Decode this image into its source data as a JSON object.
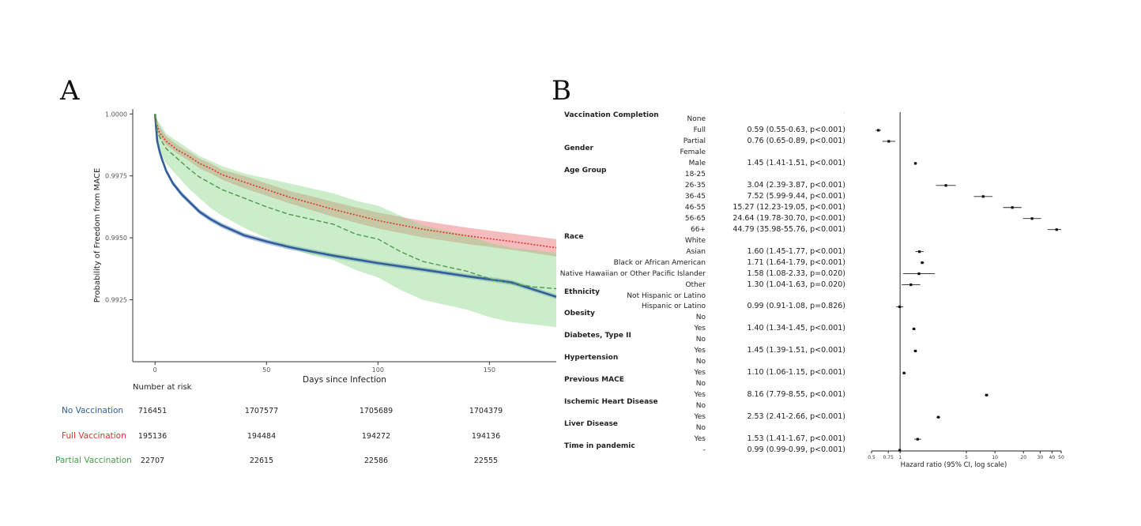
{
  "panels": {
    "a_label": "A",
    "b_label": "B"
  },
  "chart_data": [
    {
      "type": "line",
      "ylabel": "Probability of Freedom from MACE",
      "xlabel": "Days since Infection",
      "xlim": [
        -10,
        180
      ],
      "ylim": [
        0.99,
        1.0002
      ],
      "x_ticks": [
        "0",
        "50",
        "100",
        "150"
      ],
      "y_ticks": [
        "0.9925",
        "0.9950",
        "0.9975",
        "1.0000"
      ],
      "series": [
        {
          "name": "No Vaccination",
          "color": "#2f5f9e",
          "band_color": "#2f5f9e",
          "style": "solid",
          "x": [
            0,
            1,
            2,
            3,
            5,
            8,
            12,
            16,
            20,
            25,
            30,
            35,
            40,
            50,
            60,
            70,
            80,
            100,
            120,
            140,
            160,
            180
          ],
          "y": [
            1.0,
            0.9989,
            0.9985,
            0.9982,
            0.9977,
            0.9972,
            0.99675,
            0.9964,
            0.99605,
            0.99575,
            0.9955,
            0.9953,
            0.9951,
            0.99485,
            0.99463,
            0.99445,
            0.99428,
            0.99398,
            0.99372,
            0.99345,
            0.9932,
            0.99262
          ],
          "lower": [
            1.0,
            0.9988,
            0.9984,
            0.9981,
            0.9976,
            0.9971,
            0.99665,
            0.9963,
            0.99595,
            0.99565,
            0.9954,
            0.9952,
            0.995,
            0.99475,
            0.99453,
            0.99435,
            0.99418,
            0.99388,
            0.99362,
            0.99335,
            0.9931,
            0.99252
          ],
          "upper": [
            1.0,
            0.999,
            0.9986,
            0.9983,
            0.9978,
            0.9973,
            0.99685,
            0.9965,
            0.99615,
            0.99585,
            0.9956,
            0.9954,
            0.9952,
            0.99495,
            0.99473,
            0.99455,
            0.99438,
            0.99408,
            0.99382,
            0.99355,
            0.9933,
            0.99272
          ]
        },
        {
          "name": "Full Vaccination",
          "color": "#d9342b",
          "band_color": "#e66b6b",
          "style": "dotted",
          "x": [
            0,
            1,
            2,
            5,
            10,
            15,
            20,
            25,
            30,
            40,
            50,
            60,
            70,
            80,
            100,
            120,
            140,
            160,
            180
          ],
          "y": [
            0.9998,
            0.9995,
            0.99925,
            0.9989,
            0.99855,
            0.9983,
            0.998,
            0.9978,
            0.99755,
            0.99725,
            0.99695,
            0.99665,
            0.9964,
            0.99615,
            0.9957,
            0.99535,
            0.99508,
            0.99485,
            0.9946
          ],
          "lower": [
            0.9997,
            0.9993,
            0.9991,
            0.99875,
            0.9984,
            0.99812,
            0.9978,
            0.9976,
            0.99735,
            0.997,
            0.9967,
            0.9964,
            0.99612,
            0.99585,
            0.99538,
            0.99502,
            0.99475,
            0.99452,
            0.99425
          ],
          "upper": [
            0.99995,
            0.99975,
            0.9995,
            0.9991,
            0.99875,
            0.99848,
            0.9982,
            0.998,
            0.99775,
            0.9975,
            0.9972,
            0.9969,
            0.99668,
            0.99645,
            0.99602,
            0.99568,
            0.99541,
            0.99518,
            0.99495
          ]
        },
        {
          "name": "Partial Vaccination",
          "color": "#4c9a4c",
          "band_color": "#8fd68a",
          "style": "dashed",
          "x": [
            0,
            1,
            3,
            5,
            10,
            15,
            20,
            25,
            30,
            40,
            50,
            60,
            70,
            80,
            90,
            100,
            110,
            120,
            130,
            140,
            150,
            160,
            170,
            180
          ],
          "y": [
            1.0,
            0.9993,
            0.9989,
            0.9986,
            0.9982,
            0.9978,
            0.99745,
            0.9972,
            0.99695,
            0.9966,
            0.99625,
            0.99595,
            0.99575,
            0.99555,
            0.99515,
            0.99495,
            0.99445,
            0.99405,
            0.99385,
            0.99365,
            0.99335,
            0.99315,
            0.99302,
            0.99295
          ],
          "lower": [
            1.0,
            0.9988,
            0.9983,
            0.998,
            0.9975,
            0.997,
            0.9966,
            0.9962,
            0.9959,
            0.9954,
            0.995,
            0.9946,
            0.9943,
            0.9941,
            0.9937,
            0.9934,
            0.9929,
            0.9925,
            0.9923,
            0.9921,
            0.9918,
            0.9916,
            0.9915,
            0.9914
          ],
          "upper": [
            1.0,
            0.99975,
            0.9995,
            0.9992,
            0.9989,
            0.9986,
            0.9983,
            0.9981,
            0.9979,
            0.9976,
            0.9974,
            0.9972,
            0.997,
            0.9968,
            0.9965,
            0.9963,
            0.9959,
            0.9955,
            0.9953,
            0.9951,
            0.9948,
            0.9946,
            0.9945,
            0.9944
          ]
        }
      ],
      "risk_table": {
        "title": "Number at risk",
        "rows": [
          {
            "name": "No Vaccination",
            "color": "#2f5f9e",
            "values": [
              "716451",
              "1707577",
              "1705689",
              "1704379"
            ]
          },
          {
            "name": "Full Vaccination",
            "color": "#d9342b",
            "values": [
              "195136",
              "194484",
              "194272",
              "194136"
            ]
          },
          {
            "name": "Partial Vaccination",
            "color": "#4c9a4c",
            "values": [
              "22707",
              "22615",
              "22586",
              "22555"
            ]
          }
        ]
      }
    },
    {
      "type": "scatter",
      "xlabel": "Hazard ratio (95% CI, log scale)",
      "x_scale": "log",
      "x_ticks": [
        "0.5",
        "0.75",
        "1",
        "5",
        "10",
        "20",
        "30",
        "40",
        "50"
      ],
      "rows": [
        {
          "variable": "Vaccination Completion",
          "level": "None",
          "text": "",
          "hr": null
        },
        {
          "variable": "",
          "level": "Full",
          "text": "0.59 (0.55-0.63, p<0.001)",
          "hr": 0.59,
          "lo": 0.55,
          "hi": 0.63
        },
        {
          "variable": "",
          "level": "Partial",
          "text": "0.76 (0.65-0.89, p<0.001)",
          "hr": 0.76,
          "lo": 0.65,
          "hi": 0.89
        },
        {
          "variable": "Gender",
          "level": "Female",
          "text": "",
          "hr": null
        },
        {
          "variable": "",
          "level": "Male",
          "text": "1.45 (1.41-1.51, p<0.001)",
          "hr": 1.45,
          "lo": 1.41,
          "hi": 1.51
        },
        {
          "variable": "Age Group",
          "level": "18-25",
          "text": "",
          "hr": null
        },
        {
          "variable": "",
          "level": "26-35",
          "text": "3.04 (2.39-3.87, p<0.001)",
          "hr": 3.04,
          "lo": 2.39,
          "hi": 3.87
        },
        {
          "variable": "",
          "level": "36-45",
          "text": "7.52 (5.99-9.44, p<0.001)",
          "hr": 7.52,
          "lo": 5.99,
          "hi": 9.44
        },
        {
          "variable": "",
          "level": "46-55",
          "text": "15.27 (12.23-19.05, p<0.001)",
          "hr": 15.27,
          "lo": 12.23,
          "hi": 19.05
        },
        {
          "variable": "",
          "level": "56-65",
          "text": "24.64 (19.78-30.70, p<0.001)",
          "hr": 24.64,
          "lo": 19.78,
          "hi": 30.7
        },
        {
          "variable": "",
          "level": "66+",
          "text": "44.79 (35.98-55.76, p<0.001)",
          "hr": 44.79,
          "lo": 35.98,
          "hi": 55.76
        },
        {
          "variable": "Race",
          "level": "White",
          "text": "",
          "hr": null
        },
        {
          "variable": "",
          "level": "Asian",
          "text": "1.60 (1.45-1.77, p<0.001)",
          "hr": 1.6,
          "lo": 1.45,
          "hi": 1.77
        },
        {
          "variable": "",
          "level": "Black or African American",
          "text": "1.71 (1.64-1.79, p<0.001)",
          "hr": 1.71,
          "lo": 1.64,
          "hi": 1.79
        },
        {
          "variable": "",
          "level": "Native Hawaiian or Other Pacific Islander",
          "text": "1.58 (1.08-2.33, p=0.020)",
          "hr": 1.58,
          "lo": 1.08,
          "hi": 2.33
        },
        {
          "variable": "",
          "level": "Other",
          "text": "1.30 (1.04-1.63, p=0.020)",
          "hr": 1.3,
          "lo": 1.04,
          "hi": 1.63
        },
        {
          "variable": "Ethnicity",
          "level": "Not Hispanic or Latino",
          "text": "",
          "hr": null
        },
        {
          "variable": "",
          "level": "Hispanic or Latino",
          "text": "0.99 (0.91-1.08, p=0.826)",
          "hr": 0.99,
          "lo": 0.91,
          "hi": 1.08
        },
        {
          "variable": "Obesity",
          "level": "No",
          "text": "",
          "hr": null
        },
        {
          "variable": "",
          "level": "Yes",
          "text": "1.40 (1.34-1.45, p<0.001)",
          "hr": 1.4,
          "lo": 1.34,
          "hi": 1.45
        },
        {
          "variable": "Diabetes, Type II",
          "level": "No",
          "text": "",
          "hr": null
        },
        {
          "variable": "",
          "level": "Yes",
          "text": "1.45 (1.39-1.51, p<0.001)",
          "hr": 1.45,
          "lo": 1.39,
          "hi": 1.51
        },
        {
          "variable": "Hypertension",
          "level": "No",
          "text": "",
          "hr": null
        },
        {
          "variable": "",
          "level": "Yes",
          "text": "1.10 (1.06-1.15, p<0.001)",
          "hr": 1.1,
          "lo": 1.06,
          "hi": 1.15
        },
        {
          "variable": "Previous MACE",
          "level": "No",
          "text": "",
          "hr": null
        },
        {
          "variable": "",
          "level": "Yes",
          "text": "8.16 (7.79-8.55, p<0.001)",
          "hr": 8.16,
          "lo": 7.79,
          "hi": 8.55
        },
        {
          "variable": "Ischemic Heart Disease",
          "level": "No",
          "text": "",
          "hr": null
        },
        {
          "variable": "",
          "level": "Yes",
          "text": "2.53 (2.41-2.66, p<0.001)",
          "hr": 2.53,
          "lo": 2.41,
          "hi": 2.66
        },
        {
          "variable": "Liver Disease",
          "level": "No",
          "text": "",
          "hr": null
        },
        {
          "variable": "",
          "level": "Yes",
          "text": "1.53 (1.41-1.67, p<0.001)",
          "hr": 1.53,
          "lo": 1.41,
          "hi": 1.67
        },
        {
          "variable": "Time in pandemic",
          "level": "-",
          "text": "0.99 (0.99-0.99, p<0.001)",
          "hr": 0.99,
          "lo": 0.99,
          "hi": 0.99
        }
      ]
    }
  ]
}
